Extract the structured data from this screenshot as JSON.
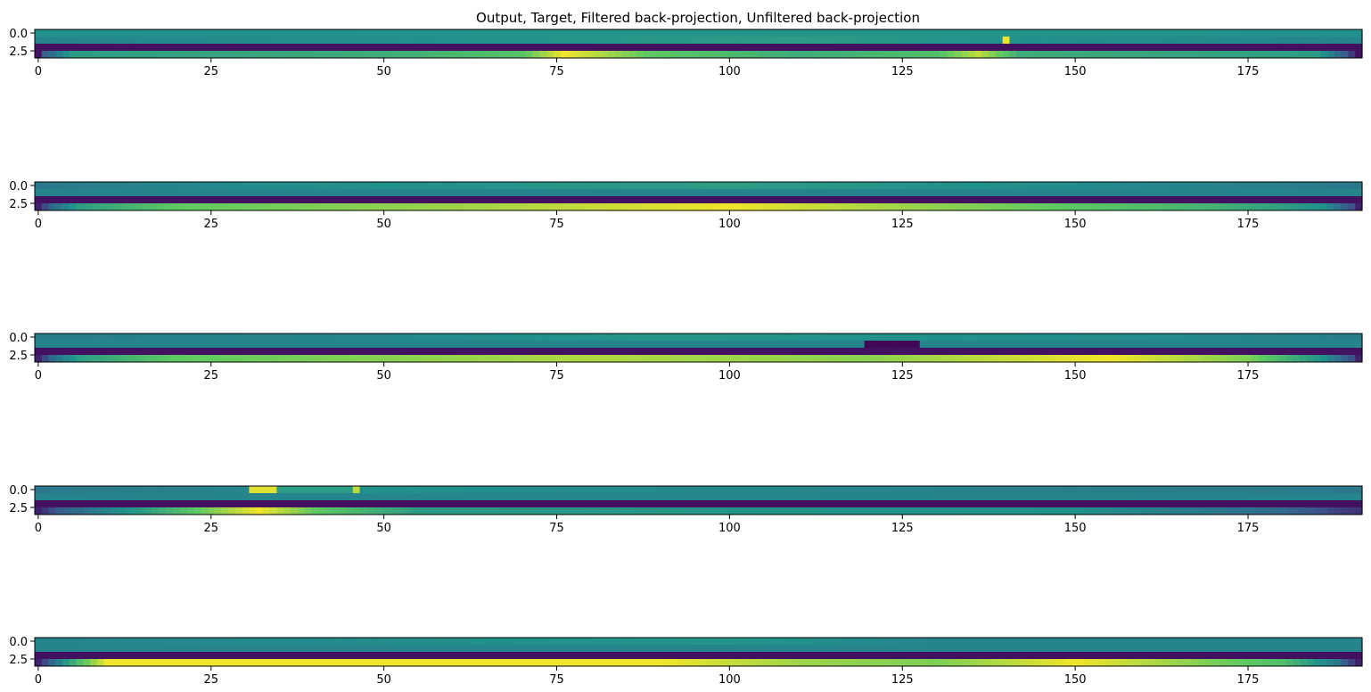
{
  "figure": {
    "title": "Output, Target, Filtered back-projection, Unfiltered back-projection"
  },
  "colormap": {
    "name": "viridis",
    "stops": [
      "#440154",
      "#3b528b",
      "#21918c",
      "#5ec962",
      "#fde725"
    ]
  },
  "chart_data": [
    {
      "type": "heatmap",
      "cols": 192,
      "rows": 4,
      "xticks": [
        0,
        25,
        50,
        75,
        100,
        125,
        150,
        175
      ],
      "yticks": [
        0.0,
        2.5
      ],
      "row_values": [
        [
          [
            0,
            0.5
          ],
          [
            140,
            0.52
          ],
          [
            191,
            0.5
          ]
        ],
        [
          [
            0,
            0.45
          ],
          [
            60,
            0.5
          ],
          [
            110,
            0.55
          ],
          [
            139,
            0.5
          ],
          [
            140,
            0.98
          ],
          [
            141,
            0.5
          ],
          [
            191,
            0.45
          ]
        ],
        [
          [
            0,
            0.05
          ]
        ],
        [
          [
            0,
            0.05
          ],
          [
            1,
            0.3
          ],
          [
            5,
            0.55
          ],
          [
            50,
            0.62
          ],
          [
            70,
            0.72
          ],
          [
            76,
            0.98
          ],
          [
            88,
            0.75
          ],
          [
            110,
            0.62
          ],
          [
            130,
            0.7
          ],
          [
            136,
            0.9
          ],
          [
            142,
            0.62
          ],
          [
            185,
            0.55
          ],
          [
            189,
            0.3
          ],
          [
            191,
            0.05
          ]
        ]
      ]
    },
    {
      "type": "heatmap",
      "cols": 192,
      "rows": 4,
      "xticks": [
        0,
        25,
        50,
        75,
        100,
        125,
        150,
        175
      ],
      "yticks": [
        0.0,
        2.5
      ],
      "row_values": [
        [
          [
            0,
            0.4
          ],
          [
            30,
            0.48
          ],
          [
            100,
            0.55
          ],
          [
            150,
            0.48
          ],
          [
            191,
            0.4
          ]
        ],
        [
          [
            0,
            0.45
          ],
          [
            191,
            0.45
          ]
        ],
        [
          [
            0,
            0.05
          ]
        ],
        [
          [
            0,
            0.1
          ],
          [
            2,
            0.35
          ],
          [
            6,
            0.55
          ],
          [
            20,
            0.75
          ],
          [
            60,
            0.85
          ],
          [
            100,
            0.98
          ],
          [
            125,
            0.85
          ],
          [
            170,
            0.65
          ],
          [
            186,
            0.5
          ],
          [
            190,
            0.25
          ],
          [
            191,
            0.1
          ]
        ]
      ]
    },
    {
      "type": "heatmap",
      "cols": 192,
      "rows": 4,
      "xticks": [
        0,
        25,
        50,
        75,
        100,
        125,
        150,
        175
      ],
      "yticks": [
        0.0,
        2.5
      ],
      "row_values": [
        [
          [
            0,
            0.42
          ],
          [
            40,
            0.45
          ],
          [
            90,
            0.52
          ],
          [
            160,
            0.48
          ],
          [
            191,
            0.42
          ]
        ],
        [
          [
            0,
            0.45
          ],
          [
            119,
            0.45
          ],
          [
            120,
            0.02
          ],
          [
            127,
            0.02
          ],
          [
            128,
            0.45
          ],
          [
            191,
            0.45
          ]
        ],
        [
          [
            0,
            0.05
          ]
        ],
        [
          [
            0,
            0.1
          ],
          [
            2,
            0.35
          ],
          [
            6,
            0.55
          ],
          [
            20,
            0.75
          ],
          [
            80,
            0.88
          ],
          [
            120,
            0.82
          ],
          [
            155,
            0.98
          ],
          [
            175,
            0.8
          ],
          [
            186,
            0.5
          ],
          [
            190,
            0.25
          ],
          [
            191,
            0.1
          ]
        ]
      ]
    },
    {
      "type": "heatmap",
      "cols": 192,
      "rows": 4,
      "xticks": [
        0,
        25,
        50,
        75,
        100,
        125,
        150,
        175
      ],
      "yticks": [
        0.0,
        2.5
      ],
      "row_values": [
        [
          [
            0,
            0.4
          ],
          [
            30,
            0.45
          ],
          [
            31,
            0.95
          ],
          [
            34,
            0.95
          ],
          [
            35,
            0.55
          ],
          [
            45,
            0.55
          ],
          [
            46,
            0.9
          ],
          [
            47,
            0.5
          ],
          [
            191,
            0.4
          ]
        ],
        [
          [
            0,
            0.45
          ],
          [
            191,
            0.45
          ]
        ],
        [
          [
            0,
            0.05
          ]
        ],
        [
          [
            0,
            0.1
          ],
          [
            3,
            0.3
          ],
          [
            15,
            0.55
          ],
          [
            25,
            0.8
          ],
          [
            32,
            0.98
          ],
          [
            40,
            0.75
          ],
          [
            55,
            0.55
          ],
          [
            100,
            0.52
          ],
          [
            150,
            0.5
          ],
          [
            180,
            0.35
          ],
          [
            191,
            0.15
          ]
        ]
      ]
    },
    {
      "type": "heatmap",
      "cols": 192,
      "rows": 4,
      "xticks": [
        0,
        25,
        50,
        75,
        100,
        125,
        150,
        175
      ],
      "yticks": [
        0.0,
        2.5
      ],
      "row_values": [
        [
          [
            0,
            0.45
          ],
          [
            100,
            0.52
          ],
          [
            130,
            0.45
          ],
          [
            191,
            0.45
          ]
        ],
        [
          [
            0,
            0.45
          ],
          [
            191,
            0.45
          ]
        ],
        [
          [
            0,
            0.05
          ]
        ],
        [
          [
            0,
            0.1
          ],
          [
            2,
            0.35
          ],
          [
            6,
            0.7
          ],
          [
            10,
            0.98
          ],
          [
            90,
            0.98
          ],
          [
            110,
            0.85
          ],
          [
            130,
            0.8
          ],
          [
            150,
            0.98
          ],
          [
            180,
            0.7
          ],
          [
            188,
            0.4
          ],
          [
            191,
            0.1
          ]
        ]
      ]
    }
  ]
}
